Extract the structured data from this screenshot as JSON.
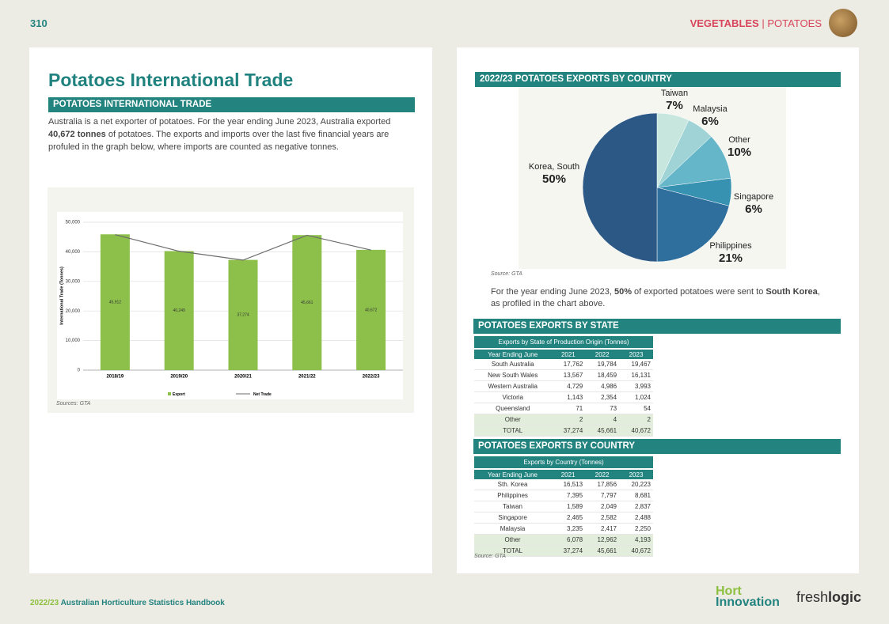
{
  "page_number": "310",
  "header": {
    "section": "VEGETABLES",
    "separator": "|",
    "subsection": "POTATOES"
  },
  "title": "Potatoes International Trade",
  "intro": {
    "heading": "POTATOES INTERNATIONAL TRADE",
    "text": [
      "Australia is a net exporter of potatoes. For the year ending June 2023, Australia exported ",
      "40,672 tonnes",
      " of potatoes. The exports and imports over the last five financial years are profuled in the graph below, where imports are counted as negative tonnes."
    ]
  },
  "chart_data": [
    {
      "type": "bar",
      "categories": [
        "2018/19",
        "2019/20",
        "2020/21",
        "2021/22",
        "2022/23"
      ],
      "series": [
        {
          "name": "Export",
          "color": "#8cc04b",
          "values": [
            45912,
            40249,
            37274,
            45661,
            40672
          ],
          "value_labels": [
            "45,912",
            "40,249",
            "37,274",
            "45,661",
            "40,672"
          ]
        },
        {
          "name": "Net Trade",
          "type": "line",
          "color": "#6b6b6b",
          "values": [
            45800,
            40200,
            37200,
            45600,
            40600
          ]
        }
      ],
      "ylabel": "International Trade (Tonnes)",
      "ylim": [
        0,
        50000
      ],
      "yticks": [
        0,
        {
          "value": 10000,
          "label": "10,000"
        },
        {
          "value": 20000,
          "label": "20,000"
        },
        {
          "value": 30000,
          "label": "30,000"
        },
        {
          "value": 40000,
          "label": "40,000"
        },
        {
          "value": 50000,
          "label": "50,000"
        }
      ],
      "grid": true,
      "legend": "bottom",
      "source": "Sources: GTA"
    },
    {
      "type": "pie",
      "title": "2022/23 POTATOES EXPORTS BY COUNTRY",
      "categories": [
        "Taiwan",
        "Malaysia",
        "Other",
        "Singapore",
        "Philippines",
        "Korea, South"
      ],
      "values": [
        7,
        6,
        10,
        6,
        21,
        50
      ],
      "value_labels": [
        "7%",
        "6%",
        "10%",
        "6%",
        "21%",
        "50%"
      ],
      "colors": [
        "#c6e6de",
        "#9fd3d6",
        "#66b6c9",
        "#3791b1",
        "#2e6f9d",
        "#2b5885"
      ],
      "source": "Source: GTA"
    }
  ],
  "pie_note": [
    "For the year ending June 2023, ",
    "50%",
    " of exported potatoes were sent to ",
    "South Korea",
    ", as profiled in the chart above."
  ],
  "state_table": {
    "heading": "POTATOES EXPORTS BY STATE",
    "caption": "Exports by State of Production Origin (Tonnes)",
    "columns": [
      "Year Ending June",
      "2021",
      "2022",
      "2023"
    ],
    "rows": [
      [
        "South Australia",
        "17,762",
        "19,784",
        "19,467"
      ],
      [
        "New South Wales",
        "13,567",
        "18,459",
        "16,131"
      ],
      [
        "Western Australia",
        "4,729",
        "4,986",
        "3,993"
      ],
      [
        "Victoria",
        "1,143",
        "2,354",
        "1,024"
      ],
      [
        "Queensland",
        "71",
        "73",
        "54"
      ],
      [
        "Other",
        "2",
        "4",
        "2"
      ],
      [
        "TOTAL",
        "37,274",
        "45,661",
        "40,672"
      ]
    ]
  },
  "country_table": {
    "heading": "POTATOES EXPORTS BY COUNTRY",
    "caption": "Exports by Country (Tonnes)",
    "columns": [
      "Year Ending June",
      "2021",
      "2022",
      "2023"
    ],
    "rows": [
      [
        "Sth. Korea",
        "16,513",
        "17,856",
        "20,223"
      ],
      [
        "Philippines",
        "7,395",
        "7,797",
        "8,681"
      ],
      [
        "Taiwan",
        "1,589",
        "2,049",
        "2,837"
      ],
      [
        "Singapore",
        "2,465",
        "2,582",
        "2,488"
      ],
      [
        "Malaysia",
        "3,235",
        "2,417",
        "2,250"
      ],
      [
        "Other",
        "6,078",
        "12,962",
        "4,193"
      ],
      [
        "TOTAL",
        "37,274",
        "45,661",
        "40,672"
      ]
    ],
    "source": "Source: GTA"
  },
  "footer": {
    "year": "2022/23",
    "title": "Australian Horticulture Statistics Handbook",
    "logo1a": "Hort",
    "logo1b": "Innovation",
    "logo2a": "fresh",
    "logo2b": "logic"
  }
}
